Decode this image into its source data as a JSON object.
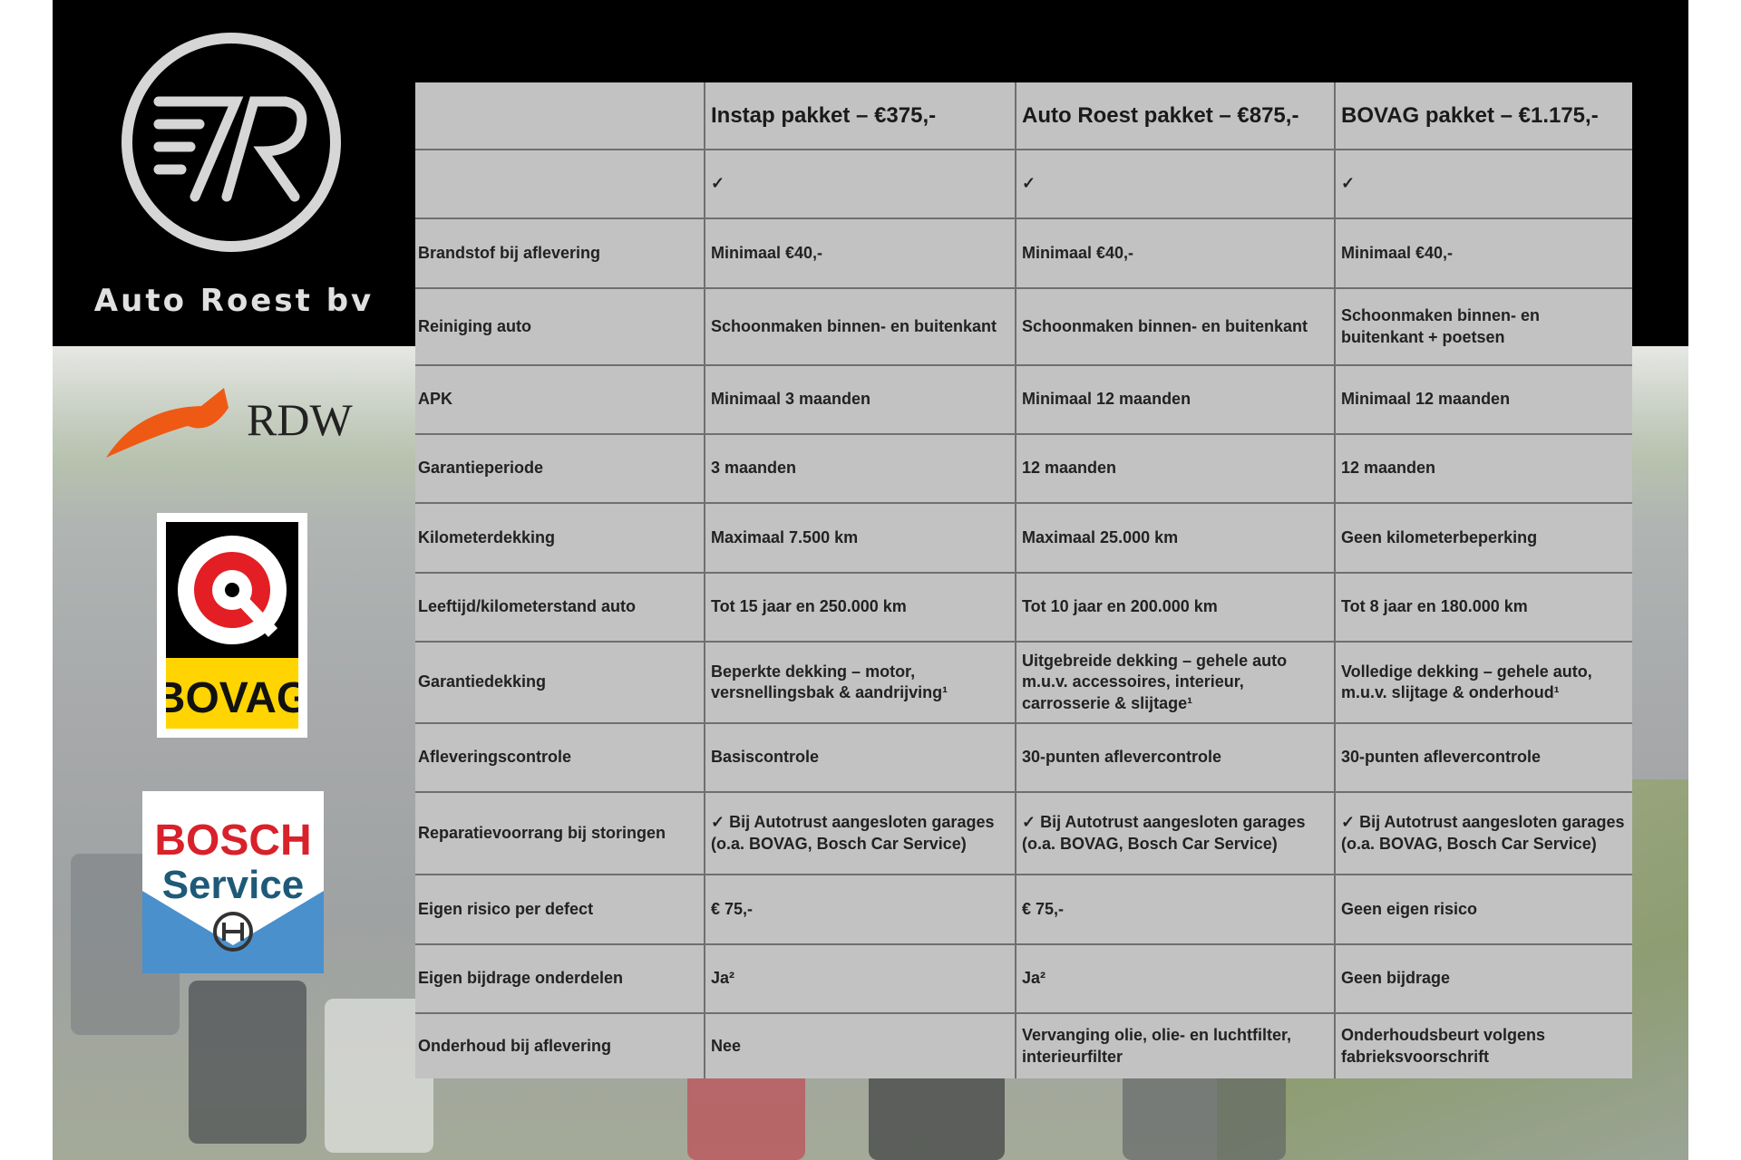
{
  "brand": {
    "name": "Auto Roest bv",
    "logo_text": "R"
  },
  "logos": {
    "rdw": "RDW",
    "bovag": "BOVAG",
    "bosch_line1": "BOSCH",
    "bosch_line2": "Service"
  },
  "table": {
    "headers": [
      "",
      "Instap pakket – €375,-",
      "Auto Roest pakket – €875,-",
      "BOVAG pakket – €1.175,-"
    ],
    "rows": [
      [
        "",
        "✓",
        "✓",
        "✓"
      ],
      [
        "Brandstof bij aflevering",
        "Minimaal €40,-",
        "Minimaal €40,-",
        "Minimaal €40,-"
      ],
      [
        "Reiniging auto",
        "Schoonmaken binnen- en buitenkant",
        "Schoonmaken binnen- en buitenkant",
        "Schoonmaken binnen- en buitenkant + poetsen"
      ],
      [
        "APK",
        "Minimaal 3 maanden",
        "Minimaal 12 maanden",
        "Minimaal 12 maanden"
      ],
      [
        "Garantieperiode",
        "3 maanden",
        "12 maanden",
        "12 maanden"
      ],
      [
        "Kilometerdekking",
        "Maximaal 7.500 km",
        "Maximaal 25.000 km",
        "Geen kilometerbeperking"
      ],
      [
        "Leeftijd/kilometerstand auto",
        "Tot 15 jaar en 250.000 km",
        "Tot 10 jaar en 200.000 km",
        "Tot 8 jaar en 180.000 km"
      ],
      [
        "Garantiedekking",
        "Beperkte dekking – motor, versnellingsbak & aandrijving¹",
        "Uitgebreide dekking – gehele auto m.u.v. accessoires, interieur, carrosserie & slijtage¹",
        "Volledige dekking – gehele auto, m.u.v. slijtage & onderhoud¹"
      ],
      [
        "Afleveringscontrole",
        "Basiscontrole",
        "30-punten aflevercontrole",
        "30-punten aflevercontrole"
      ],
      [
        "Reparatievoorrang bij storingen",
        "✓ Bij Autotrust aangesloten garages (o.a. BOVAG, Bosch Car Service)",
        "✓ Bij Autotrust aangesloten garages (o.a. BOVAG, Bosch Car Service)",
        "✓ Bij Autotrust aangesloten garages (o.a. BOVAG, Bosch Car Service)"
      ],
      [
        "Eigen risico per defect",
        "€ 75,-",
        "€ 75,-",
        "Geen eigen risico"
      ],
      [
        "Eigen bijdrage onderdelen",
        "Ja²",
        "Ja²",
        "Geen bijdrage"
      ],
      [
        "Onderhoud bij aflevering",
        "Nee",
        "Vervanging olie, olie- en luchtfilter, interieurfilter",
        "Onderhoudsbeurt volgens fabrieksvoorschrift"
      ]
    ]
  }
}
